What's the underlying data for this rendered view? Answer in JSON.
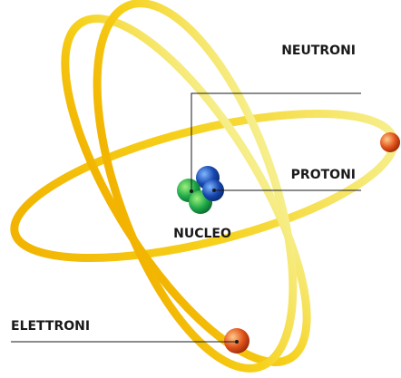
{
  "labels": {
    "neutrons": "NEUTRONI",
    "protons": "PROTONI",
    "nucleus": "NUCLEO",
    "electrons": "ELETTRONI"
  }
}
